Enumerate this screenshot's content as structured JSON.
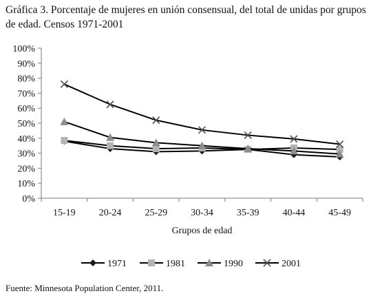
{
  "chart_data": {
    "type": "line",
    "title": "Gráfica 3. Porcentaje de mujeres en unión consensual, del total de unidas por grupos de edad. Censos 1971-2001",
    "xlabel": "Grupos de edad",
    "ylabel": "",
    "categories": [
      "15-19",
      "20-24",
      "25-29",
      "30-34",
      "35-39",
      "40-44",
      "45-49"
    ],
    "ylim": [
      0,
      100
    ],
    "yticks": [
      "0%",
      "10%",
      "20%",
      "30%",
      "40%",
      "50%",
      "60%",
      "70%",
      "80%",
      "90%",
      "100%"
    ],
    "grid": false,
    "legend": "bottom",
    "series": [
      {
        "name": "1971",
        "marker": "diamond",
        "color": "#1a1a1a",
        "values": [
          38,
          33,
          31,
          31.5,
          32.5,
          29,
          27.5
        ]
      },
      {
        "name": "1981",
        "marker": "square",
        "color": "#b3b3b3",
        "values": [
          38.5,
          35,
          33,
          33.5,
          32.5,
          33.5,
          32.5
        ]
      },
      {
        "name": "1990",
        "marker": "triangle",
        "color": "#8c8c8c",
        "values": [
          51,
          40.5,
          37,
          35,
          33,
          31.5,
          29.5
        ]
      },
      {
        "name": "2001",
        "marker": "x",
        "color": "#4d4d4d",
        "values": [
          76,
          62.5,
          52,
          45.5,
          42,
          39.5,
          36
        ]
      }
    ]
  },
  "source": "Fuente: Minnesota Population Center, 2011."
}
